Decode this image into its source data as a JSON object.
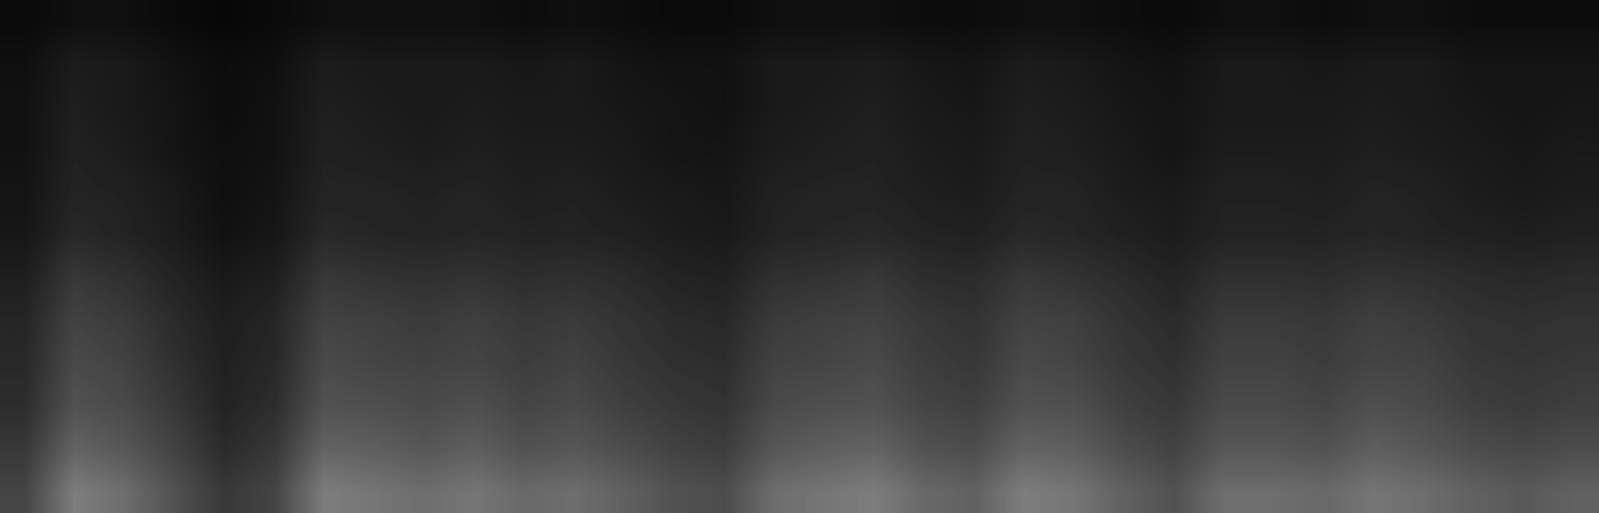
{
  "chart_data": {
    "type": "heatmap",
    "tick_labels": false,
    "color_range": [
      0,
      1
    ],
    "cells": [
      [
        0.04,
        0.06,
        0.06,
        0.04,
        0.03,
        0.04,
        0.06,
        0.06,
        0.06,
        0.06,
        0.05,
        0.06,
        0.05,
        0.04,
        0.04,
        0.06,
        0.06,
        0.06,
        0.05,
        0.05,
        0.06,
        0.06,
        0.05,
        0.04,
        0.06,
        0.06,
        0.05,
        0.06,
        0.06,
        0.05,
        0.05,
        0.05
      ],
      [
        0.06,
        0.11,
        0.1,
        0.07,
        0.05,
        0.06,
        0.11,
        0.1,
        0.1,
        0.1,
        0.09,
        0.1,
        0.08,
        0.07,
        0.07,
        0.1,
        0.1,
        0.11,
        0.09,
        0.08,
        0.11,
        0.1,
        0.08,
        0.07,
        0.1,
        0.1,
        0.09,
        0.1,
        0.1,
        0.08,
        0.08,
        0.08
      ],
      [
        0.07,
        0.12,
        0.1,
        0.08,
        0.05,
        0.07,
        0.12,
        0.11,
        0.1,
        0.11,
        0.1,
        0.1,
        0.09,
        0.08,
        0.07,
        0.1,
        0.11,
        0.12,
        0.1,
        0.09,
        0.12,
        0.11,
        0.09,
        0.08,
        0.1,
        0.1,
        0.1,
        0.11,
        0.1,
        0.09,
        0.08,
        0.09
      ],
      [
        0.07,
        0.13,
        0.11,
        0.08,
        0.06,
        0.07,
        0.13,
        0.12,
        0.11,
        0.12,
        0.11,
        0.11,
        0.1,
        0.08,
        0.08,
        0.11,
        0.12,
        0.13,
        0.11,
        0.1,
        0.13,
        0.12,
        0.1,
        0.08,
        0.11,
        0.11,
        0.11,
        0.12,
        0.11,
        0.1,
        0.09,
        0.1
      ],
      [
        0.08,
        0.14,
        0.13,
        0.1,
        0.06,
        0.08,
        0.14,
        0.14,
        0.13,
        0.14,
        0.12,
        0.13,
        0.11,
        0.1,
        0.09,
        0.13,
        0.14,
        0.14,
        0.12,
        0.11,
        0.14,
        0.14,
        0.11,
        0.1,
        0.13,
        0.13,
        0.12,
        0.14,
        0.13,
        0.11,
        0.1,
        0.11
      ],
      [
        0.09,
        0.16,
        0.14,
        0.11,
        0.07,
        0.09,
        0.16,
        0.15,
        0.14,
        0.15,
        0.14,
        0.14,
        0.13,
        0.11,
        0.1,
        0.14,
        0.15,
        0.16,
        0.14,
        0.13,
        0.16,
        0.15,
        0.13,
        0.11,
        0.14,
        0.14,
        0.14,
        0.15,
        0.14,
        0.13,
        0.12,
        0.13
      ],
      [
        0.12,
        0.22,
        0.19,
        0.14,
        0.1,
        0.12,
        0.22,
        0.2,
        0.19,
        0.2,
        0.18,
        0.19,
        0.17,
        0.14,
        0.13,
        0.19,
        0.2,
        0.22,
        0.18,
        0.17,
        0.22,
        0.2,
        0.17,
        0.14,
        0.19,
        0.19,
        0.18,
        0.2,
        0.19,
        0.17,
        0.16,
        0.17
      ],
      [
        0.15,
        0.26,
        0.23,
        0.17,
        0.12,
        0.15,
        0.26,
        0.25,
        0.23,
        0.25,
        0.22,
        0.23,
        0.2,
        0.17,
        0.16,
        0.23,
        0.25,
        0.26,
        0.22,
        0.2,
        0.26,
        0.25,
        0.2,
        0.17,
        0.23,
        0.23,
        0.22,
        0.25,
        0.23,
        0.2,
        0.19,
        0.2
      ],
      [
        0.16,
        0.29,
        0.26,
        0.19,
        0.13,
        0.16,
        0.29,
        0.27,
        0.26,
        0.27,
        0.24,
        0.26,
        0.22,
        0.19,
        0.18,
        0.26,
        0.27,
        0.29,
        0.24,
        0.22,
        0.29,
        0.27,
        0.22,
        0.19,
        0.26,
        0.26,
        0.24,
        0.27,
        0.26,
        0.22,
        0.21,
        0.22
      ],
      [
        0.18,
        0.32,
        0.29,
        0.22,
        0.14,
        0.18,
        0.32,
        0.31,
        0.29,
        0.31,
        0.27,
        0.29,
        0.25,
        0.22,
        0.2,
        0.29,
        0.31,
        0.32,
        0.27,
        0.25,
        0.32,
        0.31,
        0.25,
        0.22,
        0.29,
        0.29,
        0.27,
        0.31,
        0.29,
        0.25,
        0.23,
        0.25
      ],
      [
        0.22,
        0.39,
        0.34,
        0.26,
        0.17,
        0.22,
        0.39,
        0.37,
        0.34,
        0.37,
        0.32,
        0.34,
        0.3,
        0.26,
        0.24,
        0.34,
        0.37,
        0.39,
        0.32,
        0.3,
        0.39,
        0.37,
        0.3,
        0.26,
        0.34,
        0.34,
        0.32,
        0.37,
        0.34,
        0.3,
        0.28,
        0.3
      ],
      [
        0.27,
        0.49,
        0.43,
        0.32,
        0.22,
        0.27,
        0.49,
        0.46,
        0.43,
        0.46,
        0.41,
        0.43,
        0.38,
        0.32,
        0.3,
        0.43,
        0.46,
        0.49,
        0.41,
        0.38,
        0.49,
        0.46,
        0.38,
        0.32,
        0.43,
        0.43,
        0.41,
        0.46,
        0.43,
        0.38,
        0.35,
        0.38
      ]
    ]
  }
}
